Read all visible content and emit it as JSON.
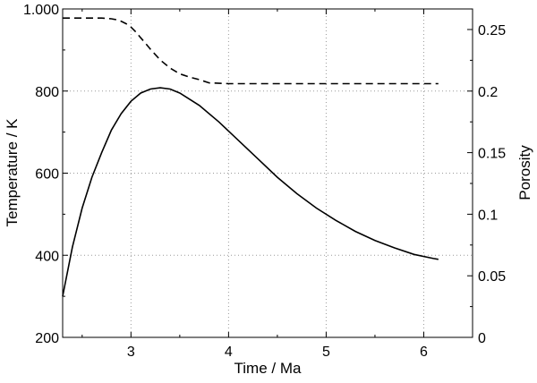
{
  "chart_data": {
    "type": "line",
    "xlabel": "Time / Ma",
    "ylabel_left": "Temperature / K",
    "ylabel_right": "Porosity",
    "xlim": [
      2.3,
      6.5
    ],
    "ylim_left": [
      200,
      1000
    ],
    "ylim_right": [
      0,
      0.2667
    ],
    "x_ticks": [
      3,
      4,
      5,
      6
    ],
    "x_tick_labels": [
      "3",
      "4",
      "5",
      "6"
    ],
    "y_left_ticks": [
      200,
      400,
      600,
      800,
      1000
    ],
    "y_left_tick_labels": [
      "200",
      "400",
      "600",
      "800",
      "1.000"
    ],
    "y_right_ticks": [
      0,
      0.05,
      0.1,
      0.15,
      0.2,
      0.25
    ],
    "y_right_tick_labels": [
      "0",
      "0.05",
      "0.1",
      "0.15",
      "0.2",
      "0.25"
    ],
    "grid": true,
    "series": [
      {
        "axis": "left",
        "style": "solid",
        "color": "#000000",
        "x": [
          2.3,
          2.4,
          2.5,
          2.6,
          2.7,
          2.8,
          2.9,
          3.0,
          3.1,
          3.2,
          3.3,
          3.4,
          3.5,
          3.7,
          3.9,
          4.1,
          4.3,
          4.5,
          4.7,
          4.9,
          5.1,
          5.3,
          5.5,
          5.7,
          5.9,
          6.1,
          6.15
        ],
        "y": [
          300,
          420,
          515,
          590,
          650,
          705,
          745,
          775,
          795,
          805,
          808,
          805,
          795,
          765,
          725,
          680,
          635,
          590,
          550,
          515,
          485,
          458,
          436,
          418,
          402,
          392,
          390
        ]
      },
      {
        "axis": "right",
        "style": "dashed",
        "color": "#000000",
        "x": [
          2.3,
          2.4,
          2.5,
          2.6,
          2.7,
          2.8,
          2.85,
          2.9,
          2.95,
          3.0,
          3.05,
          3.1,
          3.15,
          3.2,
          3.3,
          3.4,
          3.5,
          3.6,
          3.7,
          3.8,
          4.0,
          4.5,
          5.0,
          5.5,
          6.0,
          6.15
        ],
        "y": [
          0.2593,
          0.2593,
          0.2593,
          0.2593,
          0.2593,
          0.2587,
          0.258,
          0.2567,
          0.2547,
          0.252,
          0.248,
          0.2433,
          0.2387,
          0.234,
          0.2253,
          0.2187,
          0.214,
          0.2113,
          0.2093,
          0.2067,
          0.206,
          0.206,
          0.206,
          0.206,
          0.206,
          0.206
        ]
      }
    ]
  }
}
